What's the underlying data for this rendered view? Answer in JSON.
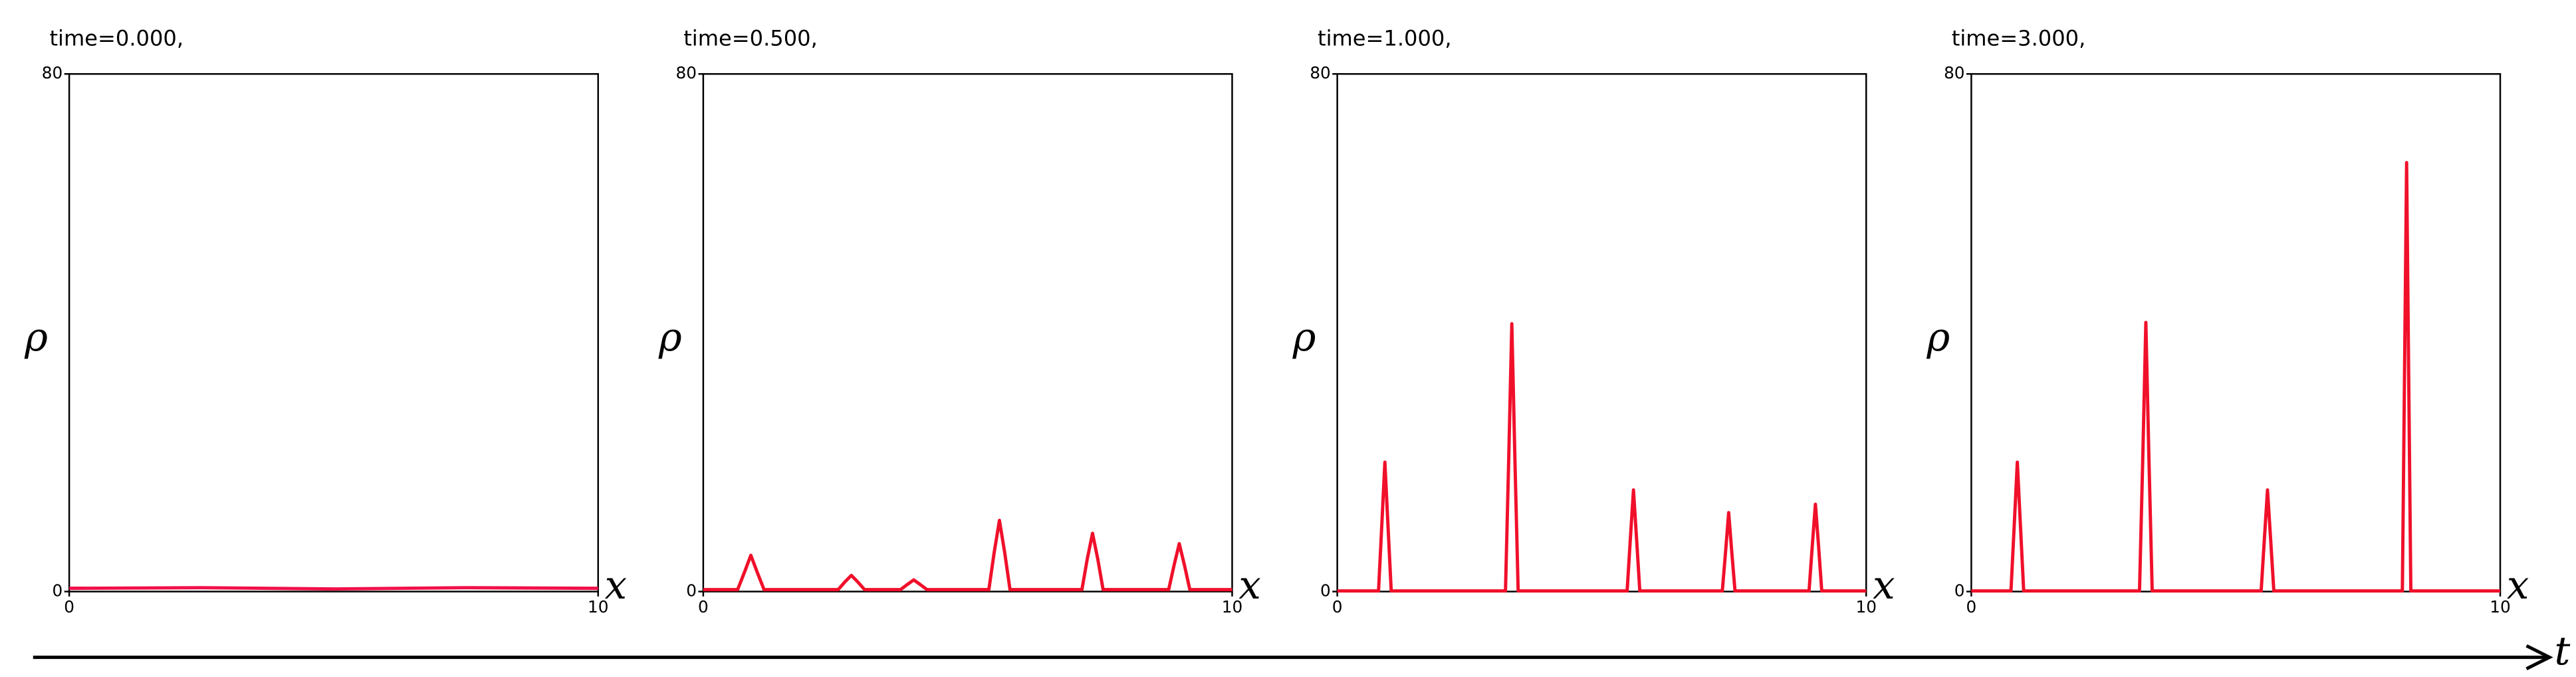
{
  "chart_data": [
    {
      "type": "line",
      "title": "time=0.000,",
      "xlabel": "x",
      "ylabel": "ρ",
      "xlim": [
        0,
        10
      ],
      "ylim": [
        0,
        80
      ],
      "xticks": [
        0,
        10
      ],
      "yticks": [
        0,
        80
      ],
      "series": [
        {
          "color": "#f0104a",
          "x": [
            0,
            2.5,
            5,
            7.5,
            10
          ],
          "values": [
            0.5,
            0.6,
            0.4,
            0.6,
            0.5
          ]
        }
      ]
    },
    {
      "type": "line",
      "title": "time=0.500,",
      "xlabel": "x",
      "ylabel": "ρ",
      "xlim": [
        0,
        10
      ],
      "ylim": [
        0,
        80
      ],
      "xticks": [
        0,
        10
      ],
      "yticks": [
        0,
        80
      ],
      "series": [
        {
          "color": "#f0102a",
          "x": [
            0,
            0.65,
            0.78,
            0.9,
            1.02,
            1.15,
            2.55,
            2.68,
            2.8,
            2.92,
            3.05,
            3.73,
            3.86,
            3.98,
            4.1,
            4.23,
            5.4,
            5.5,
            5.6,
            5.7,
            5.8,
            7.16,
            7.26,
            7.36,
            7.46,
            7.56,
            8.8,
            8.9,
            9.0,
            9.1,
            9.2,
            10
          ],
          "values": [
            0.3,
            0.3,
            3,
            5.6,
            3,
            0.3,
            0.3,
            1.5,
            2.5,
            1.5,
            0.3,
            0.3,
            1.1,
            1.8,
            1.1,
            0.3,
            0.3,
            6,
            11,
            6,
            0.3,
            0.3,
            5,
            9,
            5,
            0.3,
            0.3,
            4,
            7.4,
            4,
            0.3,
            0.3
          ]
        }
      ]
    },
    {
      "type": "line",
      "title": "time=1.000,",
      "xlabel": "x",
      "ylabel": "ρ",
      "xlim": [
        0,
        10
      ],
      "ylim": [
        0,
        80
      ],
      "xticks": [
        0,
        10
      ],
      "yticks": [
        0,
        80
      ],
      "series": [
        {
          "color": "#f0102a",
          "x": [
            0,
            0.78,
            0.84,
            0.9,
            0.96,
            1.02,
            3.18,
            3.24,
            3.3,
            3.36,
            3.42,
            5.48,
            5.54,
            5.6,
            5.66,
            5.72,
            7.28,
            7.34,
            7.4,
            7.46,
            7.52,
            8.92,
            8.98,
            9.04,
            9.1,
            9.16,
            10
          ],
          "values": [
            0.1,
            0.1,
            10,
            20,
            10,
            0.1,
            0.1,
            20,
            41.4,
            20,
            0.1,
            0.1,
            8,
            15.7,
            8,
            0.1,
            0.1,
            6,
            12.2,
            6,
            0.1,
            0.1,
            7,
            13.5,
            7,
            0.1,
            0.1
          ]
        }
      ]
    },
    {
      "type": "line",
      "title": "time=3.000,",
      "xlabel": "x",
      "ylabel": "ρ",
      "xlim": [
        0,
        10
      ],
      "ylim": [
        0,
        80
      ],
      "xticks": [
        0,
        10
      ],
      "yticks": [
        0,
        80
      ],
      "series": [
        {
          "color": "#f0102a",
          "x": [
            0,
            0.75,
            0.81,
            0.87,
            0.93,
            0.99,
            3.18,
            3.24,
            3.3,
            3.36,
            3.42,
            5.48,
            5.54,
            5.6,
            5.66,
            5.72,
            8.15,
            8.19,
            8.23,
            8.27,
            8.31,
            10
          ],
          "values": [
            0.1,
            0.1,
            10,
            20,
            10,
            0.1,
            0.1,
            20,
            41.6,
            20,
            0.1,
            0.1,
            8,
            15.7,
            8,
            0.1,
            0.1,
            33,
            66.3,
            33,
            0.1,
            0.1
          ]
        }
      ]
    }
  ],
  "time_axis": {
    "label": "t"
  }
}
